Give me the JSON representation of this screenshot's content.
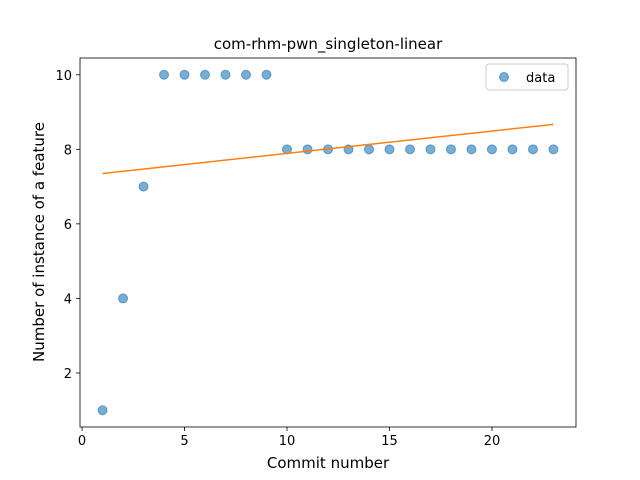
{
  "chart_data": {
    "type": "scatter",
    "title": "com-rhm-pwn_singleton-linear",
    "xlabel": "Commit number",
    "ylabel": "Number of instance of a feature",
    "xlim": [
      -0.1,
      24.1
    ],
    "ylim": [
      0.55,
      10.45
    ],
    "xticks": [
      0,
      5,
      10,
      15,
      20
    ],
    "yticks": [
      2,
      4,
      6,
      8,
      10
    ],
    "grid": false,
    "legend_position": "top-right",
    "series": [
      {
        "name": "data",
        "kind": "scatter",
        "color": "#1f77b4",
        "x": [
          1,
          2,
          3,
          4,
          5,
          6,
          7,
          8,
          9,
          10,
          11,
          12,
          13,
          14,
          15,
          16,
          17,
          18,
          19,
          20,
          21,
          22,
          23
        ],
        "y": [
          1,
          4,
          7,
          10,
          10,
          10,
          10,
          10,
          10,
          8,
          8,
          8,
          8,
          8,
          8,
          8,
          8,
          8,
          8,
          8,
          8,
          8,
          8
        ]
      },
      {
        "kind": "line",
        "color": "#ff7f0e",
        "x": [
          1,
          23
        ],
        "y": [
          7.35,
          8.67
        ]
      }
    ]
  }
}
